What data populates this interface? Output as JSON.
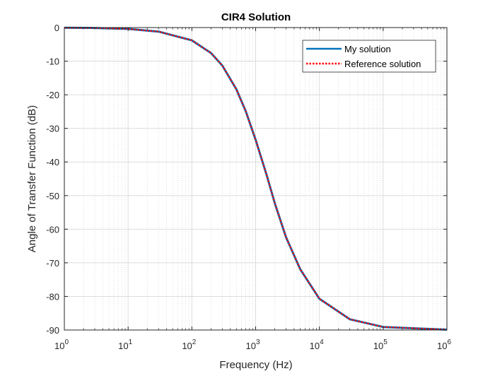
{
  "chart_data": {
    "type": "line",
    "title": "CIR4 Solution",
    "xlabel": "Frequency (Hz)",
    "ylabel": "Angle of Transfer Function (dB)",
    "xscale": "log",
    "xlim": [
      1,
      1000000
    ],
    "ylim": [
      -90,
      0
    ],
    "x_ticks": [
      {
        "value": 1,
        "base": "10",
        "exp": "0"
      },
      {
        "value": 10,
        "base": "10",
        "exp": "1"
      },
      {
        "value": 100,
        "base": "10",
        "exp": "2"
      },
      {
        "value": 1000,
        "base": "10",
        "exp": "3"
      },
      {
        "value": 10000,
        "base": "10",
        "exp": "4"
      },
      {
        "value": 100000,
        "base": "10",
        "exp": "5"
      },
      {
        "value": 1000000,
        "base": "10",
        "exp": "6"
      }
    ],
    "y_ticks": [
      0,
      -10,
      -20,
      -30,
      -40,
      -50,
      -60,
      -70,
      -80,
      -90
    ],
    "y_tick_labels": [
      "0",
      "-10",
      "-20",
      "-30",
      "-40",
      "-50",
      "-60",
      "-70",
      "-80",
      "-90"
    ],
    "grid": true,
    "minor_grid_x": true,
    "legend_position": "top-right",
    "x": [
      1,
      3,
      10,
      30,
      100,
      200,
      300,
      500,
      700,
      1000,
      1500,
      2000,
      3000,
      5000,
      10000,
      30000,
      100000,
      1000000
    ],
    "series": [
      {
        "name": "My solution",
        "color": "#0072BD",
        "style": "solid",
        "values": [
          -0.04,
          -0.12,
          -0.4,
          -1.2,
          -3.8,
          -7.6,
          -11.3,
          -18.4,
          -24.9,
          -33.4,
          -44.1,
          -52.3,
          -62.4,
          -71.9,
          -80.7,
          -86.8,
          -89.1,
          -89.9
        ]
      },
      {
        "name": "Reference solution",
        "color": "#FF0000",
        "style": "dotted",
        "values": [
          -0.04,
          -0.12,
          -0.4,
          -1.2,
          -3.8,
          -7.6,
          -11.3,
          -18.4,
          -24.9,
          -33.4,
          -44.1,
          -52.3,
          -62.4,
          -71.9,
          -80.7,
          -86.8,
          -89.1,
          -89.9
        ]
      }
    ]
  }
}
